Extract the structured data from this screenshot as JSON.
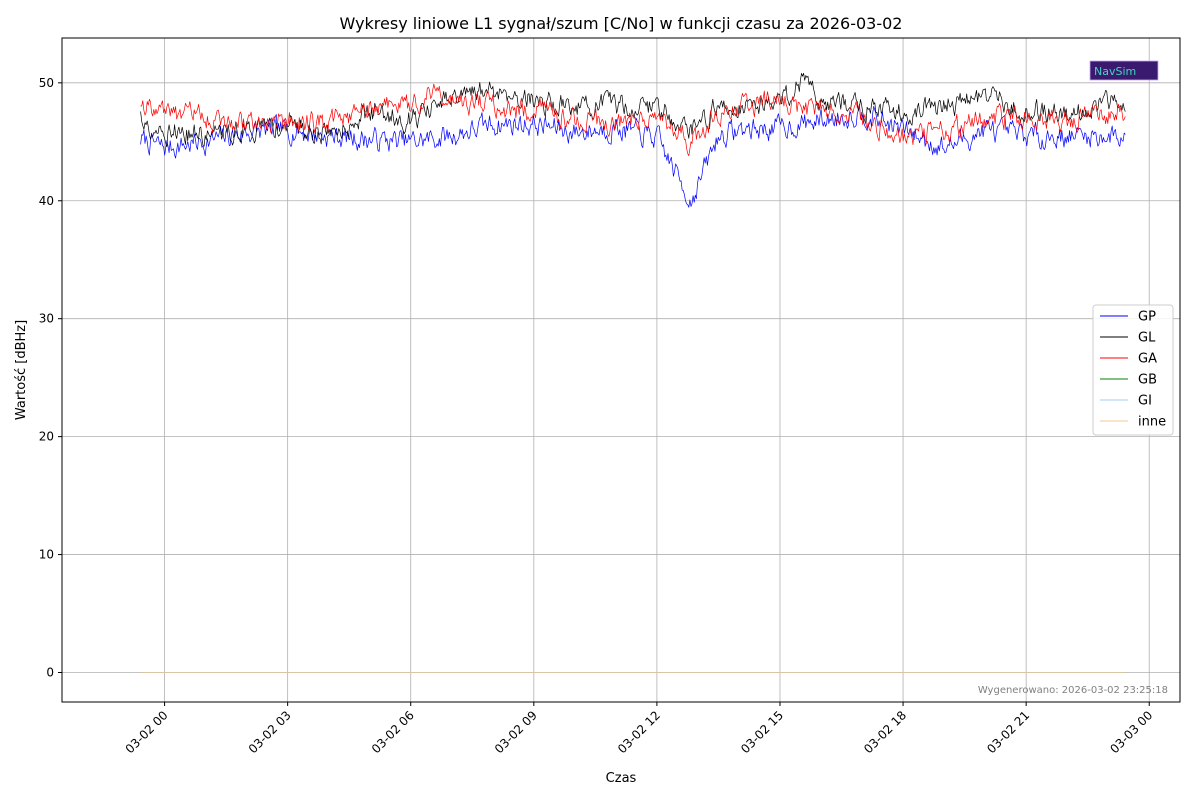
{
  "chart_data": {
    "type": "line",
    "title": "Wykresy liniowe L1 sygnał/szum [C/No] w funkcji czasu za 2026-03-02",
    "xlabel": "Czas",
    "ylabel": "Wartość [dBHz]",
    "x_range": [
      "2026-03-01 21:30",
      "2026-03-03 00:45"
    ],
    "ylim": [
      -2.5,
      53.8
    ],
    "y_ticks": [
      0,
      10,
      20,
      30,
      40,
      50
    ],
    "x_ticks": [
      {
        "time": "2026-03-02 00:00",
        "label": "03-02 00"
      },
      {
        "time": "2026-03-02 03:00",
        "label": "03-02 03"
      },
      {
        "time": "2026-03-02 06:00",
        "label": "03-02 06"
      },
      {
        "time": "2026-03-02 09:00",
        "label": "03-02 09"
      },
      {
        "time": "2026-03-02 12:00",
        "label": "03-02 12"
      },
      {
        "time": "2026-03-02 15:00",
        "label": "03-02 15"
      },
      {
        "time": "2026-03-02 18:00",
        "label": "03-02 18"
      },
      {
        "time": "2026-03-02 21:00",
        "label": "03-02 21"
      },
      {
        "time": "2026-03-03 00:00",
        "label": "03-03 00"
      }
    ],
    "grid": true,
    "legend_position": "center-right",
    "series": [
      {
        "name": "GP",
        "color": "#0000ff",
        "x": [
          "2026-03-01 23:25",
          "2026-03-02 00:00",
          "2026-03-02 01:00",
          "2026-03-02 02:00",
          "2026-03-02 03:00",
          "2026-03-02 04:00",
          "2026-03-02 05:00",
          "2026-03-02 06:00",
          "2026-03-02 07:00",
          "2026-03-02 08:00",
          "2026-03-02 09:00",
          "2026-03-02 10:00",
          "2026-03-02 11:00",
          "2026-03-02 12:00",
          "2026-03-02 12:50",
          "2026-03-02 13:30",
          "2026-03-02 14:00",
          "2026-03-02 15:00",
          "2026-03-02 16:00",
          "2026-03-02 17:00",
          "2026-03-02 18:00",
          "2026-03-02 19:00",
          "2026-03-02 20:00",
          "2026-03-02 21:00",
          "2026-03-02 22:00",
          "2026-03-02 23:25"
        ],
        "y": [
          45.2,
          44.5,
          45.0,
          45.8,
          46.0,
          45.5,
          45.2,
          45.0,
          45.5,
          46.5,
          46.5,
          45.8,
          46.2,
          45.3,
          40.0,
          45.5,
          46.0,
          46.2,
          46.8,
          47.5,
          46.0,
          44.5,
          46.0,
          45.5,
          45.5,
          45.5
        ]
      },
      {
        "name": "GL",
        "color": "#000000",
        "x": [
          "2026-03-01 23:25",
          "2026-03-02 00:00",
          "2026-03-02 01:00",
          "2026-03-02 02:00",
          "2026-03-02 03:00",
          "2026-03-02 04:00",
          "2026-03-02 05:00",
          "2026-03-02 06:00",
          "2026-03-02 07:00",
          "2026-03-02 08:00",
          "2026-03-02 09:00",
          "2026-03-02 10:00",
          "2026-03-02 11:00",
          "2026-03-02 12:00",
          "2026-03-02 12:50",
          "2026-03-02 13:30",
          "2026-03-02 14:00",
          "2026-03-02 15:00",
          "2026-03-02 15:40",
          "2026-03-02 16:00",
          "2026-03-02 17:00",
          "2026-03-02 18:00",
          "2026-03-02 19:00",
          "2026-03-02 20:00",
          "2026-03-02 21:00",
          "2026-03-02 22:00",
          "2026-03-02 23:25"
        ],
        "y": [
          47.0,
          46.0,
          45.5,
          46.0,
          46.5,
          45.8,
          47.5,
          47.0,
          48.5,
          49.5,
          48.5,
          48.0,
          48.0,
          48.0,
          46.0,
          48.0,
          48.0,
          48.5,
          50.5,
          48.5,
          48.0,
          47.5,
          48.0,
          49.0,
          47.5,
          47.5,
          48.5
        ]
      },
      {
        "name": "GA",
        "color": "#ff0000",
        "x": [
          "2026-03-01 23:25",
          "2026-03-02 00:00",
          "2026-03-02 01:00",
          "2026-03-02 02:00",
          "2026-03-02 03:00",
          "2026-03-02 04:00",
          "2026-03-02 05:00",
          "2026-03-02 06:00",
          "2026-03-02 06:30",
          "2026-03-02 07:00",
          "2026-03-02 08:00",
          "2026-03-02 09:00",
          "2026-03-02 10:00",
          "2026-03-02 11:00",
          "2026-03-02 12:00",
          "2026-03-02 12:50",
          "2026-03-02 13:30",
          "2026-03-02 14:00",
          "2026-03-02 15:00",
          "2026-03-02 16:00",
          "2026-03-02 17:00",
          "2026-03-02 18:00",
          "2026-03-02 19:00",
          "2026-03-02 20:00",
          "2026-03-02 21:00",
          "2026-03-02 22:00",
          "2026-03-02 23:25"
        ],
        "y": [
          48.5,
          47.5,
          47.0,
          46.5,
          47.0,
          46.5,
          48.0,
          48.0,
          49.5,
          48.5,
          48.0,
          47.5,
          47.0,
          46.5,
          47.5,
          45.0,
          47.5,
          48.0,
          48.5,
          47.5,
          47.0,
          45.5,
          46.0,
          47.0,
          47.0,
          47.0,
          47.5
        ]
      },
      {
        "name": "GB",
        "color": "#008000",
        "x": [
          "2026-03-01 23:25",
          "2026-03-02 23:25"
        ],
        "y": [
          0,
          0
        ]
      },
      {
        "name": "GI",
        "color": "#a6c8f0",
        "x": [
          "2026-03-01 23:25",
          "2026-03-02 23:25"
        ],
        "y": [
          0,
          0
        ]
      },
      {
        "name": "inne",
        "color": "#f5c79a",
        "x": [
          "2026-03-01 23:25",
          "2026-03-02 23:25"
        ],
        "y": [
          0,
          0
        ]
      }
    ]
  },
  "logo": {
    "text": "NavSim"
  },
  "footer": {
    "generated": "Wygenerowano: 2026-03-02 23:25:18"
  }
}
